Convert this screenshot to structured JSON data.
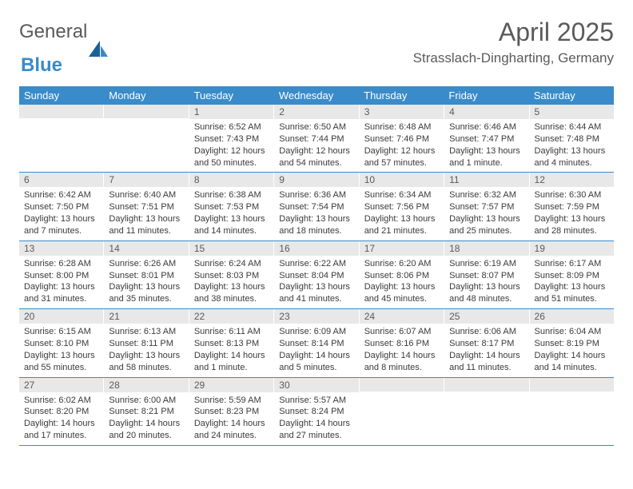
{
  "logo": {
    "word1": "General",
    "word2": "Blue"
  },
  "title": "April 2025",
  "location": "Strasslach-Dingharting, Germany",
  "colors": {
    "accent": "#3a8bc9",
    "header_bg": "#3a8bc9",
    "daynum_bg": "#e8e8e8",
    "text": "#3a3a3a",
    "title_text": "#5a5a5a",
    "row_border": "#3a8bc9"
  },
  "weekdays": [
    "Sunday",
    "Monday",
    "Tuesday",
    "Wednesday",
    "Thursday",
    "Friday",
    "Saturday"
  ],
  "weeks": [
    [
      {
        "empty": true
      },
      {
        "empty": true
      },
      {
        "num": "1",
        "sunrise": "Sunrise: 6:52 AM",
        "sunset": "Sunset: 7:43 PM",
        "daylight1": "Daylight: 12 hours",
        "daylight2": "and 50 minutes."
      },
      {
        "num": "2",
        "sunrise": "Sunrise: 6:50 AM",
        "sunset": "Sunset: 7:44 PM",
        "daylight1": "Daylight: 12 hours",
        "daylight2": "and 54 minutes."
      },
      {
        "num": "3",
        "sunrise": "Sunrise: 6:48 AM",
        "sunset": "Sunset: 7:46 PM",
        "daylight1": "Daylight: 12 hours",
        "daylight2": "and 57 minutes."
      },
      {
        "num": "4",
        "sunrise": "Sunrise: 6:46 AM",
        "sunset": "Sunset: 7:47 PM",
        "daylight1": "Daylight: 13 hours",
        "daylight2": "and 1 minute."
      },
      {
        "num": "5",
        "sunrise": "Sunrise: 6:44 AM",
        "sunset": "Sunset: 7:48 PM",
        "daylight1": "Daylight: 13 hours",
        "daylight2": "and 4 minutes."
      }
    ],
    [
      {
        "num": "6",
        "sunrise": "Sunrise: 6:42 AM",
        "sunset": "Sunset: 7:50 PM",
        "daylight1": "Daylight: 13 hours",
        "daylight2": "and 7 minutes."
      },
      {
        "num": "7",
        "sunrise": "Sunrise: 6:40 AM",
        "sunset": "Sunset: 7:51 PM",
        "daylight1": "Daylight: 13 hours",
        "daylight2": "and 11 minutes."
      },
      {
        "num": "8",
        "sunrise": "Sunrise: 6:38 AM",
        "sunset": "Sunset: 7:53 PM",
        "daylight1": "Daylight: 13 hours",
        "daylight2": "and 14 minutes."
      },
      {
        "num": "9",
        "sunrise": "Sunrise: 6:36 AM",
        "sunset": "Sunset: 7:54 PM",
        "daylight1": "Daylight: 13 hours",
        "daylight2": "and 18 minutes."
      },
      {
        "num": "10",
        "sunrise": "Sunrise: 6:34 AM",
        "sunset": "Sunset: 7:56 PM",
        "daylight1": "Daylight: 13 hours",
        "daylight2": "and 21 minutes."
      },
      {
        "num": "11",
        "sunrise": "Sunrise: 6:32 AM",
        "sunset": "Sunset: 7:57 PM",
        "daylight1": "Daylight: 13 hours",
        "daylight2": "and 25 minutes."
      },
      {
        "num": "12",
        "sunrise": "Sunrise: 6:30 AM",
        "sunset": "Sunset: 7:59 PM",
        "daylight1": "Daylight: 13 hours",
        "daylight2": "and 28 minutes."
      }
    ],
    [
      {
        "num": "13",
        "sunrise": "Sunrise: 6:28 AM",
        "sunset": "Sunset: 8:00 PM",
        "daylight1": "Daylight: 13 hours",
        "daylight2": "and 31 minutes."
      },
      {
        "num": "14",
        "sunrise": "Sunrise: 6:26 AM",
        "sunset": "Sunset: 8:01 PM",
        "daylight1": "Daylight: 13 hours",
        "daylight2": "and 35 minutes."
      },
      {
        "num": "15",
        "sunrise": "Sunrise: 6:24 AM",
        "sunset": "Sunset: 8:03 PM",
        "daylight1": "Daylight: 13 hours",
        "daylight2": "and 38 minutes."
      },
      {
        "num": "16",
        "sunrise": "Sunrise: 6:22 AM",
        "sunset": "Sunset: 8:04 PM",
        "daylight1": "Daylight: 13 hours",
        "daylight2": "and 41 minutes."
      },
      {
        "num": "17",
        "sunrise": "Sunrise: 6:20 AM",
        "sunset": "Sunset: 8:06 PM",
        "daylight1": "Daylight: 13 hours",
        "daylight2": "and 45 minutes."
      },
      {
        "num": "18",
        "sunrise": "Sunrise: 6:19 AM",
        "sunset": "Sunset: 8:07 PM",
        "daylight1": "Daylight: 13 hours",
        "daylight2": "and 48 minutes."
      },
      {
        "num": "19",
        "sunrise": "Sunrise: 6:17 AM",
        "sunset": "Sunset: 8:09 PM",
        "daylight1": "Daylight: 13 hours",
        "daylight2": "and 51 minutes."
      }
    ],
    [
      {
        "num": "20",
        "sunrise": "Sunrise: 6:15 AM",
        "sunset": "Sunset: 8:10 PM",
        "daylight1": "Daylight: 13 hours",
        "daylight2": "and 55 minutes."
      },
      {
        "num": "21",
        "sunrise": "Sunrise: 6:13 AM",
        "sunset": "Sunset: 8:11 PM",
        "daylight1": "Daylight: 13 hours",
        "daylight2": "and 58 minutes."
      },
      {
        "num": "22",
        "sunrise": "Sunrise: 6:11 AM",
        "sunset": "Sunset: 8:13 PM",
        "daylight1": "Daylight: 14 hours",
        "daylight2": "and 1 minute."
      },
      {
        "num": "23",
        "sunrise": "Sunrise: 6:09 AM",
        "sunset": "Sunset: 8:14 PM",
        "daylight1": "Daylight: 14 hours",
        "daylight2": "and 5 minutes."
      },
      {
        "num": "24",
        "sunrise": "Sunrise: 6:07 AM",
        "sunset": "Sunset: 8:16 PM",
        "daylight1": "Daylight: 14 hours",
        "daylight2": "and 8 minutes."
      },
      {
        "num": "25",
        "sunrise": "Sunrise: 6:06 AM",
        "sunset": "Sunset: 8:17 PM",
        "daylight1": "Daylight: 14 hours",
        "daylight2": "and 11 minutes."
      },
      {
        "num": "26",
        "sunrise": "Sunrise: 6:04 AM",
        "sunset": "Sunset: 8:19 PM",
        "daylight1": "Daylight: 14 hours",
        "daylight2": "and 14 minutes."
      }
    ],
    [
      {
        "num": "27",
        "sunrise": "Sunrise: 6:02 AM",
        "sunset": "Sunset: 8:20 PM",
        "daylight1": "Daylight: 14 hours",
        "daylight2": "and 17 minutes."
      },
      {
        "num": "28",
        "sunrise": "Sunrise: 6:00 AM",
        "sunset": "Sunset: 8:21 PM",
        "daylight1": "Daylight: 14 hours",
        "daylight2": "and 20 minutes."
      },
      {
        "num": "29",
        "sunrise": "Sunrise: 5:59 AM",
        "sunset": "Sunset: 8:23 PM",
        "daylight1": "Daylight: 14 hours",
        "daylight2": "and 24 minutes."
      },
      {
        "num": "30",
        "sunrise": "Sunrise: 5:57 AM",
        "sunset": "Sunset: 8:24 PM",
        "daylight1": "Daylight: 14 hours",
        "daylight2": "and 27 minutes."
      },
      {
        "empty": true
      },
      {
        "empty": true
      },
      {
        "empty": true
      }
    ]
  ]
}
